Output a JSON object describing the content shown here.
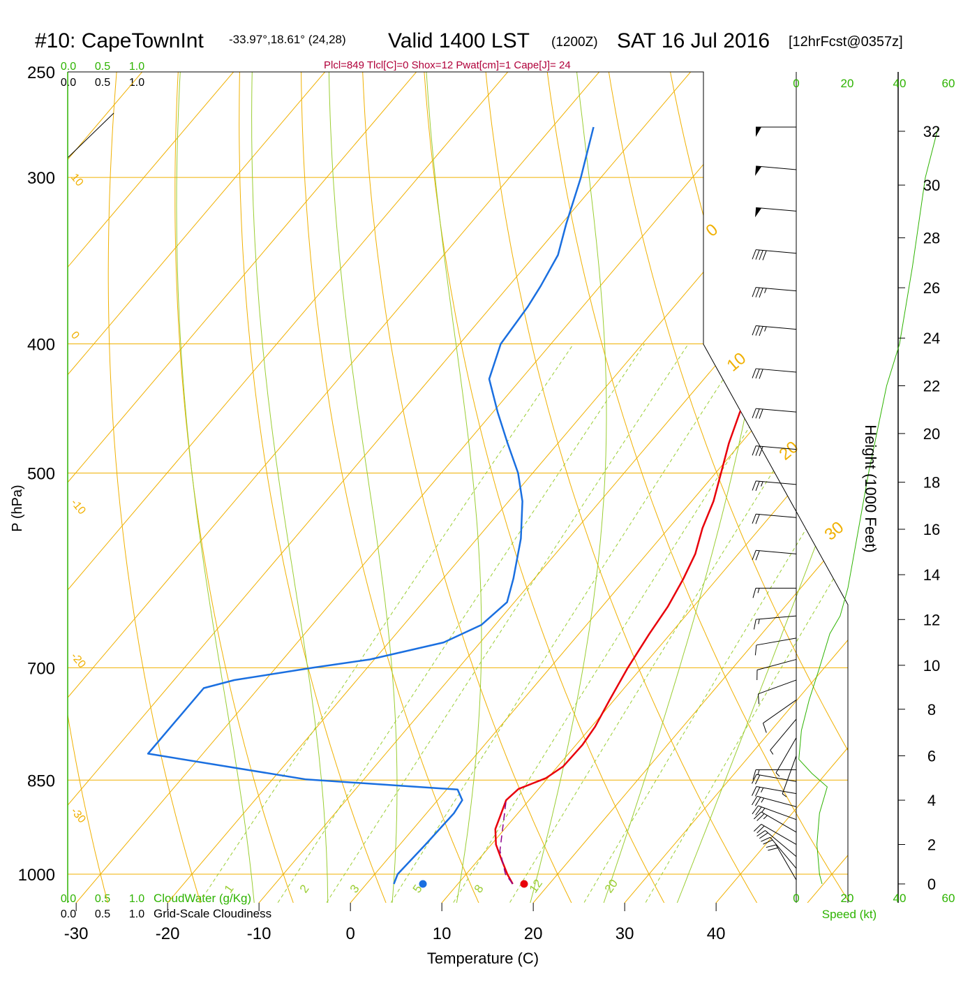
{
  "header": {
    "station": "#10: CapeTownInt",
    "coords": "-33.97°,18.61° (24,28)",
    "valid": "Valid 1400 LST",
    "utc": "(1200Z)",
    "date": "SAT 16 Jul 2016",
    "fcst": "[12hrFcst@0357z]",
    "indices": "Plcl=849 Tlcl[C]=0 Shox=12 Pwat[cm]=1 Cape[J]= 24"
  },
  "colors": {
    "temperature": "#e8000b",
    "dewpoint": "#1a6fe0",
    "isotherm": "#f0b000",
    "dry_adiabat": "#f0b000",
    "moist_adiabat": "#9acd32",
    "mixing_ratio": "#9acd32",
    "green_label": "#2db300",
    "parcel": "#8b008b",
    "indices": "#b0003a"
  },
  "chart_data": {
    "type": "line",
    "xlabel": "Temperature (C)",
    "ylabel": "P (hPa)",
    "y2label": "Height (1000 Feet)",
    "x_ticks": [
      -30,
      -20,
      -10,
      0,
      10,
      20,
      30,
      40
    ],
    "p_ticks": [
      250,
      300,
      400,
      500,
      700,
      850,
      1000
    ],
    "height_ticks": [
      0,
      2,
      4,
      6,
      8,
      10,
      12,
      14,
      16,
      18,
      20,
      22,
      24,
      26,
      28,
      30,
      32
    ],
    "isotherm_labels": [
      "10",
      "0",
      "-10",
      "-20",
      "-30"
    ],
    "dry_adiabat_labels": [
      "0",
      "10",
      "20",
      "30"
    ],
    "mixing_ratio_labels": [
      "1",
      "2",
      "3",
      "5",
      "8",
      "12",
      "20"
    ],
    "cloud_water_ticks": [
      "0.0",
      "0.5",
      "1.0"
    ],
    "cloud_water_label": "CloudWater (g/Kg)",
    "cloudiness_ticks": [
      "0.0",
      "0.5",
      "1.0"
    ],
    "cloudiness_label": "Grid-Scale Cloudiness",
    "speed_ticks": [
      "0",
      "20",
      "40",
      "60"
    ],
    "speed_label": "Speed (kt)",
    "series": [
      {
        "name": "temperature",
        "points": [
          [
            16.0,
            1017
          ],
          [
            14.5,
            1000
          ],
          [
            12.5,
            975
          ],
          [
            10.5,
            950
          ],
          [
            9.0,
            925
          ],
          [
            7.5,
            880
          ],
          [
            7.8,
            863
          ],
          [
            9.8,
            847
          ],
          [
            10.6,
            830
          ],
          [
            10.7,
            800
          ],
          [
            10.4,
            775
          ],
          [
            9.5,
            740
          ],
          [
            8.5,
            700
          ],
          [
            7.7,
            660
          ],
          [
            7.2,
            630
          ],
          [
            6.3,
            600
          ],
          [
            5.3,
            575
          ],
          [
            3.7,
            550
          ],
          [
            2.4,
            525
          ],
          [
            0.6,
            500
          ],
          [
            -1.3,
            475
          ],
          [
            -3.0,
            450
          ],
          [
            -4.5,
            425
          ],
          [
            -6.0,
            400
          ],
          [
            -8.3,
            375
          ],
          [
            -11.0,
            350
          ],
          [
            -14.2,
            325
          ],
          [
            -18.2,
            300
          ],
          [
            -22.8,
            282
          ],
          [
            -25.5,
            275
          ]
        ]
      },
      {
        "name": "dewpoint",
        "points": [
          [
            3.0,
            1017
          ],
          [
            2.5,
            1000
          ],
          [
            2.8,
            950
          ],
          [
            3.0,
            900
          ],
          [
            2.7,
            880
          ],
          [
            1.2,
            864
          ],
          [
            -16.3,
            849
          ],
          [
            -36.0,
            812
          ],
          [
            -36.0,
            725
          ],
          [
            -33.4,
            715
          ],
          [
            -26.0,
            700
          ],
          [
            -20.5,
            690
          ],
          [
            -14.0,
            670
          ],
          [
            -11.5,
            650
          ],
          [
            -10.8,
            625
          ],
          [
            -12.3,
            600
          ],
          [
            -15.2,
            560
          ],
          [
            -18.5,
            525
          ],
          [
            -21.6,
            500
          ],
          [
            -25.5,
            475
          ],
          [
            -29.5,
            450
          ],
          [
            -33.5,
            425
          ],
          [
            -35.5,
            400
          ],
          [
            -36.0,
            375
          ],
          [
            -36.5,
            362
          ],
          [
            -37.5,
            343
          ],
          [
            -39.5,
            325
          ],
          [
            -42.2,
            300
          ],
          [
            -45.5,
            275
          ]
        ]
      },
      {
        "name": "parcel",
        "points": [
          [
            16.0,
            1017
          ],
          [
            14.3,
            1000
          ],
          [
            11.5,
            960
          ],
          [
            7.5,
            880
          ]
        ]
      }
    ],
    "surface_temperature": 16.5,
    "surface_dewpoint": 5.2,
    "surface_pressure": 1017,
    "height_profile": [
      [
        0,
        1017
      ],
      [
        2,
        950
      ],
      [
        4,
        880
      ],
      [
        6,
        815
      ],
      [
        8,
        752
      ],
      [
        10,
        697
      ],
      [
        12,
        644
      ],
      [
        14,
        596
      ],
      [
        16,
        551
      ],
      [
        18,
        508
      ],
      [
        20,
        467
      ],
      [
        22,
        430
      ],
      [
        24,
        396
      ],
      [
        26,
        363
      ],
      [
        28,
        333
      ],
      [
        30,
        304
      ],
      [
        32,
        277
      ]
    ],
    "wind_speed_profile": [
      [
        10,
        1017
      ],
      [
        9,
        1000
      ],
      [
        8,
        950
      ],
      [
        9,
        900
      ],
      [
        12,
        860
      ],
      [
        6,
        840
      ],
      [
        1,
        820
      ],
      [
        2,
        780
      ],
      [
        5,
        740
      ],
      [
        9,
        700
      ],
      [
        13,
        660
      ],
      [
        17,
        640
      ],
      [
        20,
        610
      ],
      [
        28,
        500
      ],
      [
        35,
        430
      ],
      [
        40,
        400
      ],
      [
        45,
        350
      ],
      [
        50,
        300
      ],
      [
        55,
        275
      ]
    ],
    "wind_barbs": [
      {
        "p": 1010,
        "dir": 330,
        "spd": 20
      },
      {
        "p": 990,
        "dir": 320,
        "spd": 20
      },
      {
        "p": 970,
        "dir": 310,
        "spd": 20
      },
      {
        "p": 950,
        "dir": 300,
        "spd": 20
      },
      {
        "p": 930,
        "dir": 300,
        "spd": 25
      },
      {
        "p": 910,
        "dir": 290,
        "spd": 25
      },
      {
        "p": 890,
        "dir": 285,
        "spd": 25
      },
      {
        "p": 870,
        "dir": 280,
        "spd": 25
      },
      {
        "p": 852,
        "dir": 280,
        "spd": 20
      },
      {
        "p": 835,
        "dir": 270,
        "spd": 15
      },
      {
        "p": 815,
        "dir": 200,
        "spd": 5
      },
      {
        "p": 790,
        "dir": 210,
        "spd": 5
      },
      {
        "p": 765,
        "dir": 220,
        "spd": 5
      },
      {
        "p": 740,
        "dir": 235,
        "spd": 10
      },
      {
        "p": 715,
        "dir": 250,
        "spd": 10
      },
      {
        "p": 690,
        "dir": 255,
        "spd": 10
      },
      {
        "p": 665,
        "dir": 260,
        "spd": 10
      },
      {
        "p": 640,
        "dir": 265,
        "spd": 15
      },
      {
        "p": 610,
        "dir": 270,
        "spd": 15
      },
      {
        "p": 575,
        "dir": 275,
        "spd": 20
      },
      {
        "p": 540,
        "dir": 275,
        "spd": 20
      },
      {
        "p": 510,
        "dir": 275,
        "spd": 25
      },
      {
        "p": 480,
        "dir": 275,
        "spd": 30
      },
      {
        "p": 450,
        "dir": 275,
        "spd": 30
      },
      {
        "p": 420,
        "dir": 275,
        "spd": 30
      },
      {
        "p": 390,
        "dir": 275,
        "spd": 35
      },
      {
        "p": 365,
        "dir": 275,
        "spd": 35
      },
      {
        "p": 342,
        "dir": 275,
        "spd": 40
      },
      {
        "p": 318,
        "dir": 275,
        "spd": 50
      },
      {
        "p": 296,
        "dir": 275,
        "spd": 50
      },
      {
        "p": 275,
        "dir": 270,
        "spd": 50
      }
    ]
  }
}
